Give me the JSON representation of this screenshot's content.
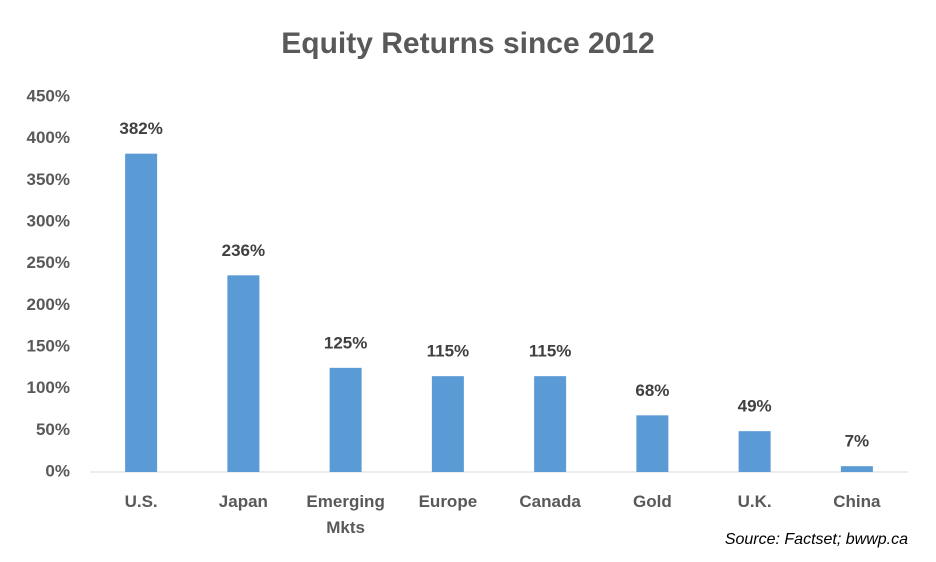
{
  "chart_data": {
    "type": "bar",
    "title": "Equity Returns since 2012",
    "categories": [
      "U.S.",
      "Japan",
      "Emerging Mkts",
      "Europe",
      "Canada",
      "Gold",
      "U.K.",
      "China"
    ],
    "values": [
      382,
      236,
      125,
      115,
      115,
      68,
      49,
      7
    ],
    "value_labels": [
      "382%",
      "236%",
      "125%",
      "115%",
      "115%",
      "68%",
      "49%",
      "7%"
    ],
    "color": "#5b9bd5",
    "ylim": [
      0,
      450
    ],
    "yticks": [
      {
        "value": 0,
        "label": "0%"
      },
      {
        "value": 50,
        "label": "50%"
      },
      {
        "value": 100,
        "label": "100%"
      },
      {
        "value": 150,
        "label": "150%"
      },
      {
        "value": 200,
        "label": "200%"
      },
      {
        "value": 250,
        "label": "250%"
      },
      {
        "value": 300,
        "label": "300%"
      },
      {
        "value": 350,
        "label": "350%"
      },
      {
        "value": 400,
        "label": "400%"
      },
      {
        "value": 450,
        "label": "450%"
      }
    ],
    "grid": false,
    "source": "Source: Factset; bwwp.ca"
  }
}
